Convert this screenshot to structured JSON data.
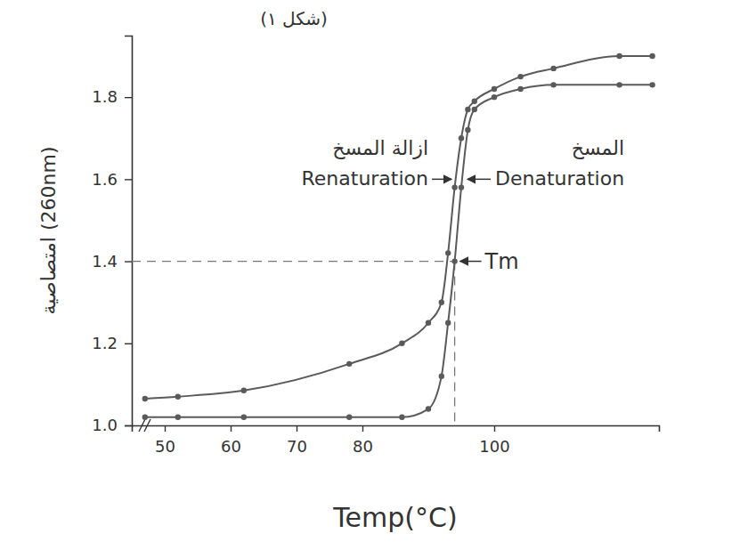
{
  "chart_data": {
    "type": "line",
    "title": "(شكل ١)",
    "x_label": "Temp(°C)",
    "y_label": "امتصاصية (260nm)",
    "x": [
      47,
      52,
      62,
      78,
      86,
      90,
      92,
      93,
      94,
      95,
      96,
      97,
      100,
      104,
      109,
      119,
      124
    ],
    "series": [
      {
        "name": "Renaturation",
        "color": "#5a5a5a",
        "marker": "circle",
        "values": [
          1.065,
          1.07,
          1.085,
          1.15,
          1.2,
          1.25,
          1.3,
          1.42,
          1.58,
          1.7,
          1.77,
          1.79,
          1.82,
          1.85,
          1.87,
          1.9,
          1.9
        ]
      },
      {
        "name": "Denaturation",
        "color": "#5a5a5a",
        "marker": "circle",
        "values": [
          1.02,
          1.02,
          1.02,
          1.02,
          1.02,
          1.04,
          1.12,
          1.25,
          1.4,
          1.58,
          1.72,
          1.77,
          1.8,
          1.82,
          1.83,
          1.83,
          1.83
        ]
      }
    ],
    "annotations": [
      {
        "text": "Tm",
        "x": 94,
        "y": 1.4
      },
      {
        "text": "ازالة المسخ"
      },
      {
        "text": "المسخ"
      }
    ],
    "xlim": [
      45,
      125
    ],
    "ylim": [
      1.0,
      1.95
    ],
    "xticks": [
      50,
      60,
      70,
      80,
      100
    ],
    "yticks": [
      {
        "value": 1,
        "label": "1.0"
      },
      1.2,
      1.4,
      1.6,
      1.8
    ],
    "grid": false
  }
}
